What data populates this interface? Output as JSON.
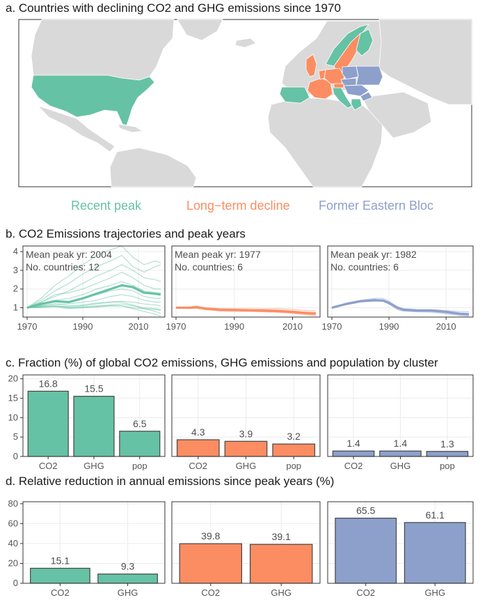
{
  "panels": {
    "a_title": "a. Countries with declining CO2 and GHG emissions since 1970",
    "b_title": "b. CO2 Emissions trajectories and peak years",
    "c_title": "c. Fraction (%) of global CO2 emissions, GHG emissions and population by cluster",
    "d_title": "d. Relative reduction in annual emissions since peak years (%)"
  },
  "colors": {
    "recent_peak": "#66c2a5",
    "long_term_decline": "#fc8d62",
    "former_eastern_bloc": "#8da0cb",
    "land": "#d9d9d9",
    "ocean": "#ffffff",
    "panel_border": "#333333",
    "grid": "#ebebeb"
  },
  "legend": [
    {
      "label": "Recent peak",
      "color": "#66c2a5"
    },
    {
      "label": "Long−term decline",
      "color": "#fc8d62"
    },
    {
      "label": "Former Eastern Bloc",
      "color": "#8da0cb"
    }
  ],
  "chart_data": [
    {
      "type": "line",
      "panel": "b",
      "x_ticks": [
        "1970",
        "1990",
        "2010"
      ],
      "y_ticks": [
        "1",
        "2",
        "3",
        "4"
      ],
      "xlim": [
        1970,
        2018
      ],
      "ylim": [
        0.5,
        4.3
      ],
      "facets": [
        {
          "annotation_peak": "Mean peak yr: 2004",
          "annotation_count": "No. countries: 12",
          "color": "#66c2a5",
          "x": [
            1970,
            1975,
            1980,
            1985,
            1990,
            1995,
            2000,
            2004,
            2008,
            2012,
            2016,
            2018
          ],
          "mean": [
            1.0,
            1.2,
            1.35,
            1.3,
            1.5,
            1.75,
            2.0,
            2.2,
            2.1,
            1.8,
            1.75,
            1.7
          ],
          "countries": [
            [
              1.0,
              1.5,
              2.2,
              2.7,
              3.3,
              3.8,
              4.1,
              4.3,
              3.7,
              3.3,
              3.5,
              3.4
            ],
            [
              1.0,
              1.4,
              1.9,
              2.3,
              2.8,
              3.2,
              3.5,
              3.8,
              3.2,
              2.9,
              3.2,
              3.3
            ],
            [
              1.0,
              1.3,
              1.6,
              1.9,
              2.3,
              2.7,
              3.0,
              3.3,
              3.0,
              2.6,
              2.5,
              2.4
            ],
            [
              1.0,
              1.3,
              1.7,
              1.8,
              2.0,
              2.3,
              2.6,
              2.9,
              2.6,
              2.2,
              2.0,
              2.0
            ],
            [
              1.0,
              1.2,
              1.4,
              1.5,
              1.7,
              2.0,
              2.2,
              2.4,
              2.2,
              1.9,
              1.8,
              1.8
            ],
            [
              1.0,
              1.15,
              1.3,
              1.3,
              1.5,
              1.7,
              1.9,
              2.0,
              1.9,
              1.6,
              1.5,
              1.5
            ],
            [
              1.0,
              1.1,
              1.2,
              1.2,
              1.3,
              1.4,
              1.6,
              1.7,
              1.6,
              1.4,
              1.3,
              1.3
            ],
            [
              1.0,
              1.05,
              1.1,
              1.05,
              1.1,
              1.2,
              1.3,
              1.35,
              1.3,
              1.2,
              1.15,
              1.1
            ],
            [
              1.0,
              1.05,
              1.1,
              1.0,
              1.05,
              1.1,
              1.15,
              1.2,
              1.1,
              1.0,
              0.95,
              0.9
            ],
            [
              1.0,
              1.0,
              1.05,
              0.95,
              1.0,
              1.05,
              1.1,
              1.1,
              1.0,
              0.95,
              0.9,
              0.85
            ],
            [
              1.0,
              1.1,
              1.2,
              1.1,
              1.15,
              1.25,
              1.3,
              1.3,
              1.15,
              0.95,
              0.8,
              0.7
            ],
            [
              1.0,
              1.05,
              1.1,
              1.0,
              1.0,
              1.05,
              1.1,
              1.1,
              0.95,
              0.8,
              0.65,
              0.55
            ]
          ]
        },
        {
          "annotation_peak": "Mean peak yr: 1977",
          "annotation_count": "No. countries: 6",
          "color": "#fc8d62",
          "x": [
            1970,
            1975,
            1977,
            1980,
            1985,
            1990,
            1995,
            2000,
            2005,
            2010,
            2015,
            2018
          ],
          "mean": [
            1.0,
            1.0,
            1.02,
            0.95,
            0.9,
            0.88,
            0.86,
            0.84,
            0.82,
            0.78,
            0.72,
            0.7
          ],
          "countries": [
            [
              1.0,
              1.05,
              1.1,
              1.0,
              0.95,
              0.95,
              0.95,
              0.93,
              0.95,
              0.9,
              0.85,
              0.82
            ],
            [
              1.0,
              0.98,
              1.0,
              0.95,
              0.9,
              0.9,
              0.88,
              0.9,
              0.88,
              0.82,
              0.75,
              0.72
            ],
            [
              1.0,
              1.02,
              1.05,
              0.92,
              0.85,
              0.85,
              0.82,
              0.8,
              0.78,
              0.72,
              0.65,
              0.62
            ],
            [
              1.0,
              0.95,
              0.98,
              0.9,
              0.82,
              0.8,
              0.8,
              0.78,
              0.75,
              0.7,
              0.62,
              0.58
            ],
            [
              1.0,
              1.0,
              1.03,
              0.98,
              0.92,
              0.88,
              0.86,
              0.84,
              0.8,
              0.78,
              0.72,
              0.7
            ],
            [
              1.0,
              1.03,
              1.06,
              1.0,
              0.94,
              0.9,
              0.88,
              0.86,
              0.84,
              0.8,
              0.75,
              0.72
            ]
          ]
        },
        {
          "annotation_peak": "Mean peak yr: 1982",
          "annotation_count": "No. countries: 6",
          "color": "#8da0cb",
          "x": [
            1970,
            1975,
            1980,
            1985,
            1988,
            1990,
            1993,
            1995,
            2000,
            2005,
            2010,
            2015,
            2018
          ],
          "mean": [
            1.0,
            1.2,
            1.35,
            1.4,
            1.38,
            1.25,
            1.0,
            0.9,
            0.85,
            0.85,
            0.78,
            0.68,
            0.65
          ],
          "countries": [
            [
              1.0,
              1.25,
              1.4,
              1.5,
              1.5,
              1.35,
              1.05,
              0.95,
              0.9,
              0.9,
              0.85,
              0.8,
              0.78
            ],
            [
              1.0,
              1.2,
              1.35,
              1.45,
              1.42,
              1.3,
              1.0,
              0.9,
              0.85,
              0.85,
              0.8,
              0.72,
              0.7
            ],
            [
              1.0,
              1.15,
              1.3,
              1.35,
              1.35,
              1.25,
              0.95,
              0.85,
              0.8,
              0.8,
              0.72,
              0.62,
              0.6
            ],
            [
              1.0,
              1.2,
              1.32,
              1.38,
              1.35,
              1.2,
              0.9,
              0.82,
              0.78,
              0.76,
              0.68,
              0.58,
              0.55
            ],
            [
              1.0,
              1.22,
              1.38,
              1.42,
              1.4,
              1.22,
              1.0,
              0.9,
              0.86,
              0.88,
              0.8,
              0.7,
              0.66
            ],
            [
              1.0,
              1.18,
              1.33,
              1.38,
              1.36,
              1.2,
              0.98,
              0.88,
              0.82,
              0.82,
              0.75,
              0.66,
              0.62
            ]
          ]
        }
      ]
    },
    {
      "type": "bar",
      "panel": "c",
      "categories": [
        "CO2",
        "GHG",
        "pop"
      ],
      "y_ticks": [
        "0",
        "5",
        "10",
        "15",
        "20"
      ],
      "ylim": [
        0,
        21
      ],
      "facets": [
        {
          "color": "#66c2a5",
          "values": [
            16.8,
            15.5,
            6.5
          ],
          "labels": [
            "16.8",
            "15.5",
            "6.5"
          ]
        },
        {
          "color": "#fc8d62",
          "values": [
            4.3,
            3.9,
            3.2
          ],
          "labels": [
            "4.3",
            "3.9",
            "3.2"
          ]
        },
        {
          "color": "#8da0cb",
          "values": [
            1.4,
            1.4,
            1.3
          ],
          "labels": [
            "1.4",
            "1.4",
            "1.3"
          ]
        }
      ]
    },
    {
      "type": "bar",
      "panel": "d",
      "categories": [
        "CO2",
        "GHG"
      ],
      "y_ticks": [
        "0",
        "20",
        "40",
        "60",
        "80"
      ],
      "ylim": [
        0,
        82
      ],
      "facets": [
        {
          "color": "#66c2a5",
          "values": [
            15.1,
            9.3
          ],
          "labels": [
            "15.1",
            "9.3"
          ]
        },
        {
          "color": "#fc8d62",
          "values": [
            39.8,
            39.1
          ],
          "labels": [
            "39.8",
            "39.1"
          ]
        },
        {
          "color": "#8da0cb",
          "values": [
            65.5,
            61.1
          ],
          "labels": [
            "65.5",
            "61.1"
          ]
        }
      ]
    }
  ]
}
